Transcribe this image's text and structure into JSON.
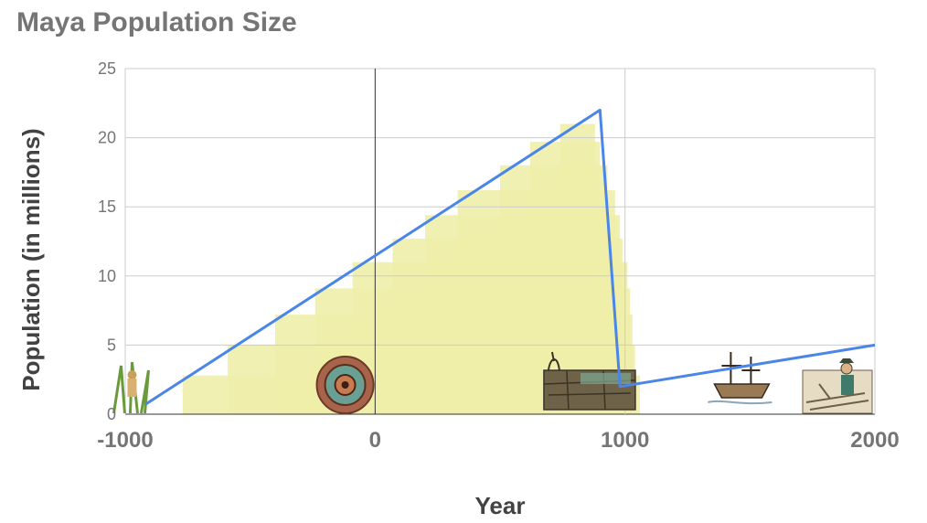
{
  "chart_data": {
    "type": "line",
    "title": "Maya Population Size",
    "xlabel": "Year",
    "ylabel": "Population (in millions)",
    "xlim": [
      -1000,
      2000
    ],
    "ylim": [
      0,
      25
    ],
    "x_ticks": [
      "-1000",
      "0",
      "1000",
      "2000"
    ],
    "y_ticks": [
      "0",
      "5",
      "10",
      "15",
      "20",
      "25"
    ],
    "grid": true,
    "legend": "none",
    "series": [
      {
        "color": "#4a86e8",
        "x": [
          -920,
          900,
          980,
          2000
        ],
        "values": [
          0.7,
          22,
          2,
          5
        ]
      }
    ],
    "background_steps": {
      "color": "#eeeeaa",
      "steps": [
        {
          "x0": -770,
          "x1": 1060,
          "y": 2.8
        },
        {
          "x0": -590,
          "x1": 1040,
          "y": 5
        },
        {
          "x0": -400,
          "x1": 1030,
          "y": 7.2
        },
        {
          "x0": -240,
          "x1": 1020,
          "y": 9.1
        },
        {
          "x0": -90,
          "x1": 1010,
          "y": 11
        },
        {
          "x0": 70,
          "x1": 990,
          "y": 12.7
        },
        {
          "x0": 200,
          "x1": 980,
          "y": 14.4
        },
        {
          "x0": 330,
          "x1": 960,
          "y": 16.2
        },
        {
          "x0": 500,
          "x1": 930,
          "y": 18
        },
        {
          "x0": 620,
          "x1": 900,
          "y": 19.7
        },
        {
          "x0": 740,
          "x1": 880,
          "y": 21
        }
      ]
    },
    "illustrations": [
      {
        "name": "maya-figure-icon",
        "x": -980
      },
      {
        "name": "aztec-calendar-icon",
        "x": -120
      },
      {
        "name": "ruins-icon",
        "x": 840
      },
      {
        "name": "ship-icon",
        "x": 1460
      },
      {
        "name": "settler-icon",
        "x": 1850
      }
    ]
  }
}
